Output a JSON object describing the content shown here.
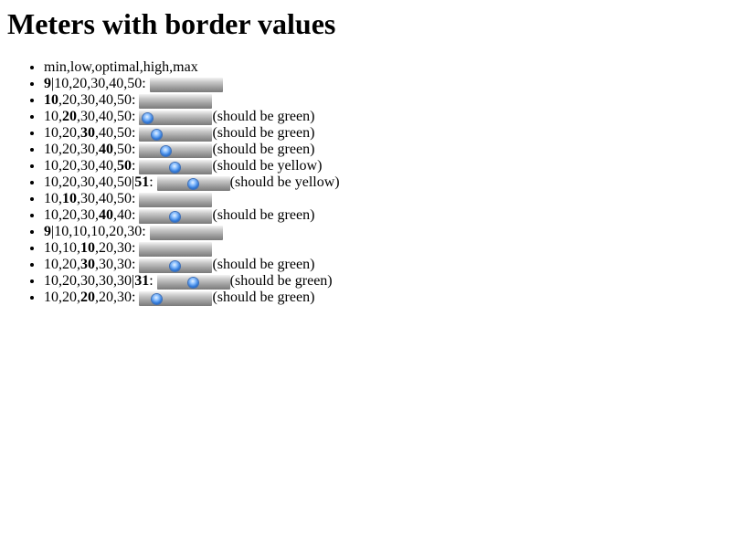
{
  "page_title": "Meters with border values",
  "items": [
    {
      "segments": [
        {
          "t": "min,low,optimal,high,max",
          "b": false
        }
      ],
      "meter": false,
      "note": ""
    },
    {
      "segments": [
        {
          "t": "9",
          "b": true
        },
        {
          "t": "|10,20,30,40,50: ",
          "b": false
        }
      ],
      "meter": true,
      "knob": null,
      "note": ""
    },
    {
      "segments": [
        {
          "t": "10",
          "b": true
        },
        {
          "t": ",20,30,40,50: ",
          "b": false
        }
      ],
      "meter": true,
      "knob": null,
      "note": ""
    },
    {
      "segments": [
        {
          "t": "10,",
          "b": false
        },
        {
          "t": "20",
          "b": true
        },
        {
          "t": ",30,40,50: ",
          "b": false
        }
      ],
      "meter": true,
      "knob": 0.125,
      "note": "(should be green)"
    },
    {
      "segments": [
        {
          "t": "10,20,",
          "b": false
        },
        {
          "t": "30",
          "b": true
        },
        {
          "t": ",40,50: ",
          "b": false
        }
      ],
      "meter": true,
      "knob": 0.25,
      "note": "(should be green)"
    },
    {
      "segments": [
        {
          "t": "10,20,30,",
          "b": false
        },
        {
          "t": "40",
          "b": true
        },
        {
          "t": ",50: ",
          "b": false
        }
      ],
      "meter": true,
      "knob": 0.375,
      "note": "(should be green)"
    },
    {
      "segments": [
        {
          "t": "10,20,30,40,",
          "b": false
        },
        {
          "t": "50",
          "b": true
        },
        {
          "t": ": ",
          "b": false
        }
      ],
      "meter": true,
      "knob": 0.5,
      "note": "(should be yellow)"
    },
    {
      "segments": [
        {
          "t": "10,20,30,40,50|",
          "b": false
        },
        {
          "t": "51",
          "b": true
        },
        {
          "t": ": ",
          "b": false
        }
      ],
      "meter": true,
      "knob": 0.5,
      "note": "(should be yellow)"
    },
    {
      "segments": [
        {
          "t": "10,",
          "b": false
        },
        {
          "t": "10",
          "b": true
        },
        {
          "t": ",30,40,50: ",
          "b": false
        }
      ],
      "meter": true,
      "knob": null,
      "note": ""
    },
    {
      "segments": [
        {
          "t": "10,20,30,",
          "b": false
        },
        {
          "t": "40",
          "b": true
        },
        {
          "t": ",40: ",
          "b": false
        }
      ],
      "meter": true,
      "knob": 0.5,
      "note": "(should be green)"
    },
    {
      "segments": [
        {
          "t": "9",
          "b": true
        },
        {
          "t": "|10,10,10,20,30: ",
          "b": false
        }
      ],
      "meter": true,
      "knob": null,
      "note": ""
    },
    {
      "segments": [
        {
          "t": "10,10,",
          "b": false
        },
        {
          "t": "10",
          "b": true
        },
        {
          "t": ",20,30: ",
          "b": false
        }
      ],
      "meter": true,
      "knob": null,
      "note": ""
    },
    {
      "segments": [
        {
          "t": "10,20,",
          "b": false
        },
        {
          "t": "30",
          "b": true
        },
        {
          "t": ",30,30: ",
          "b": false
        }
      ],
      "meter": true,
      "knob": 0.5,
      "note": "(should be green)"
    },
    {
      "segments": [
        {
          "t": "10,20,30,30,30|",
          "b": false
        },
        {
          "t": "31",
          "b": true
        },
        {
          "t": ": ",
          "b": false
        }
      ],
      "meter": true,
      "knob": 0.5,
      "note": "(should be green)"
    },
    {
      "segments": [
        {
          "t": "10,20,",
          "b": false
        },
        {
          "t": "20",
          "b": true
        },
        {
          "t": ",20,30: ",
          "b": false
        }
      ],
      "meter": true,
      "knob": 0.25,
      "note": "(should be green)"
    }
  ]
}
